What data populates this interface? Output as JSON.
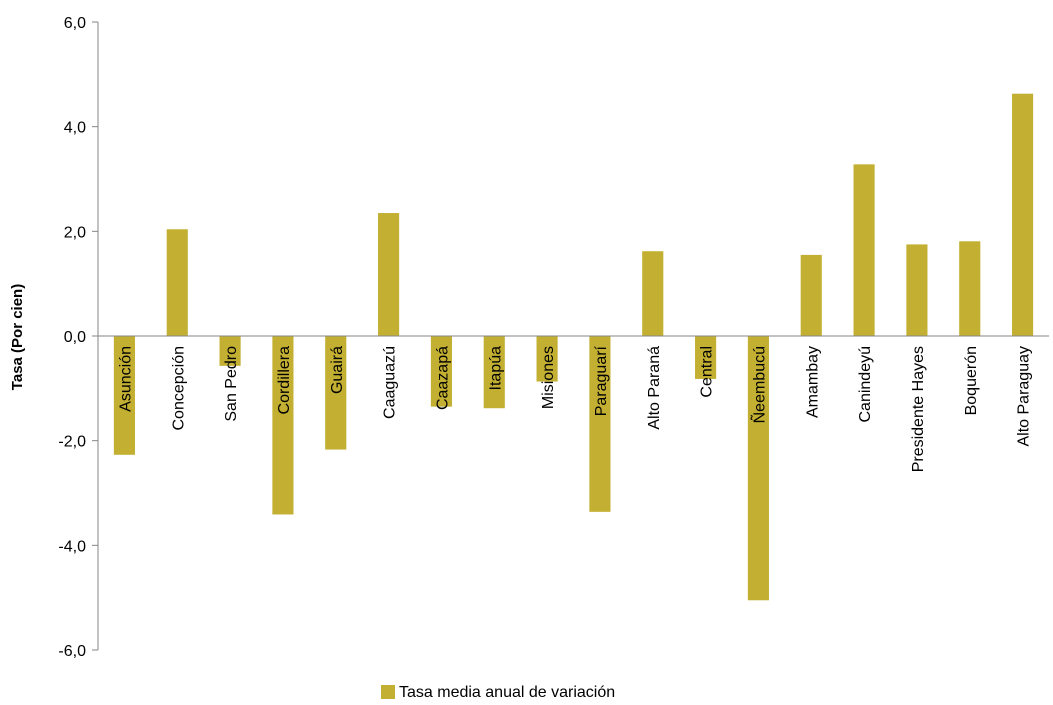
{
  "chart_data": {
    "type": "bar",
    "categories": [
      "Asunción",
      "Concepción",
      "San Pedro",
      "Cordillera",
      "Guairá",
      "Caaguazú",
      "Caazapá",
      "Itapúa",
      "Misiones",
      "Paraguarí",
      "Alto Paraná",
      "Central",
      "Ñeembucú",
      "Amambay",
      "Canindeyú",
      "Presidente Hayes",
      "Boquerón",
      "Alto Paraguay"
    ],
    "series": [
      {
        "name": "Tasa media anual de variación",
        "values": [
          -2.27,
          2.04,
          -0.57,
          -3.41,
          -2.17,
          2.35,
          -1.35,
          -1.38,
          -0.87,
          -3.36,
          1.62,
          -0.82,
          -5.05,
          1.55,
          3.28,
          1.75,
          1.81,
          4.63
        ]
      }
    ],
    "title": "",
    "xlabel": "",
    "ylabel": "Tasa (Por cien)",
    "ylim": [
      -6,
      6
    ],
    "yticks": [
      "6,0",
      "4,0",
      "2,0",
      "0,0",
      "-2,0",
      "-4,0",
      "-6,0"
    ],
    "grid": false,
    "legend_position": "bottom",
    "colors": {
      "bar": "#C3B032",
      "axis": "#868686"
    }
  }
}
